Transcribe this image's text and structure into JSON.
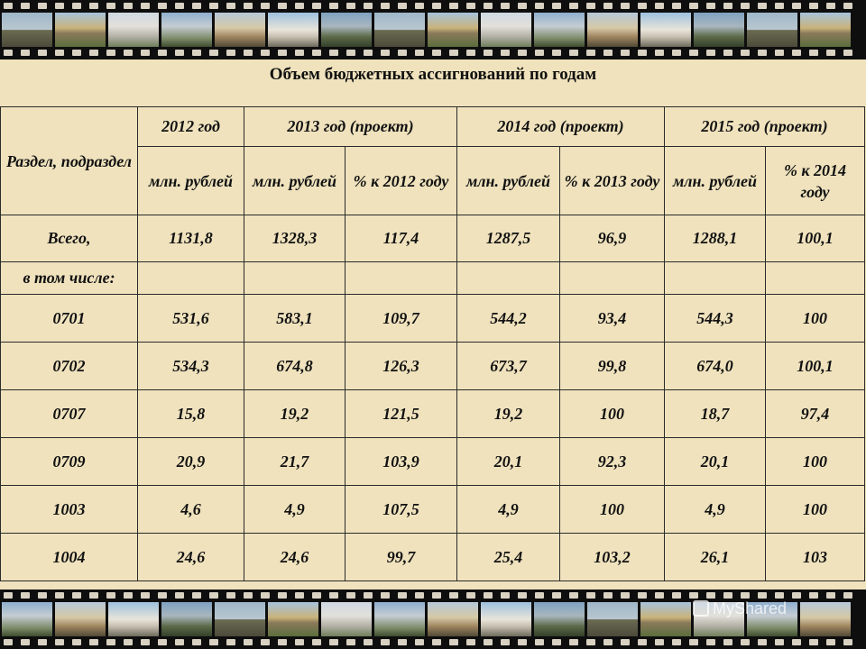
{
  "title": "Объем бюджетных ассигнований по годам",
  "header": {
    "section_label": "Раздел, подраздел",
    "years": [
      {
        "label": "2012 год"
      },
      {
        "label": "2013 год (проект)"
      },
      {
        "label": "2014 год (проект)"
      },
      {
        "label": "2015 год (проект)"
      }
    ],
    "sub": [
      "млн. рублей",
      "млн. рублей",
      "% к 2012 году",
      "млн. рублей",
      "% к 2013 году",
      "млн. рублей",
      "% к 2014 году"
    ]
  },
  "total_row": {
    "label": "Всего,",
    "values": [
      "1131,8",
      "1328,3",
      "117,4",
      "1287,5",
      "96,9",
      "1288,1",
      "100,1"
    ]
  },
  "subtitle_row": {
    "label": "в том числе:"
  },
  "rows": [
    {
      "code": "0701",
      "values": [
        "531,6",
        "583,1",
        "109,7",
        "544,2",
        "93,4",
        "544,3",
        "100"
      ]
    },
    {
      "code": "0702",
      "values": [
        "534,3",
        "674,8",
        "126,3",
        "673,7",
        "99,8",
        "674,0",
        "100,1"
      ]
    },
    {
      "code": "0707",
      "values": [
        "15,8",
        "19,2",
        "121,5",
        "19,2",
        "100",
        "18,7",
        "97,4"
      ]
    },
    {
      "code": "0709",
      "values": [
        "20,9",
        "21,7",
        "103,9",
        "20,1",
        "92,3",
        "20,1",
        "100"
      ]
    },
    {
      "code": "1003",
      "values": [
        "4,6",
        "4,9",
        "107,5",
        "4,9",
        "100",
        "4,9",
        "100"
      ]
    },
    {
      "code": "1004",
      "values": [
        "24,6",
        "24,6",
        "99,7",
        "25,4",
        "103,2",
        "26,1",
        "103"
      ]
    }
  ],
  "watermark": "MyShared",
  "colors": {
    "background": "#efe2bd",
    "film": "#0e0e0e",
    "grid": "#2a2a2a"
  }
}
